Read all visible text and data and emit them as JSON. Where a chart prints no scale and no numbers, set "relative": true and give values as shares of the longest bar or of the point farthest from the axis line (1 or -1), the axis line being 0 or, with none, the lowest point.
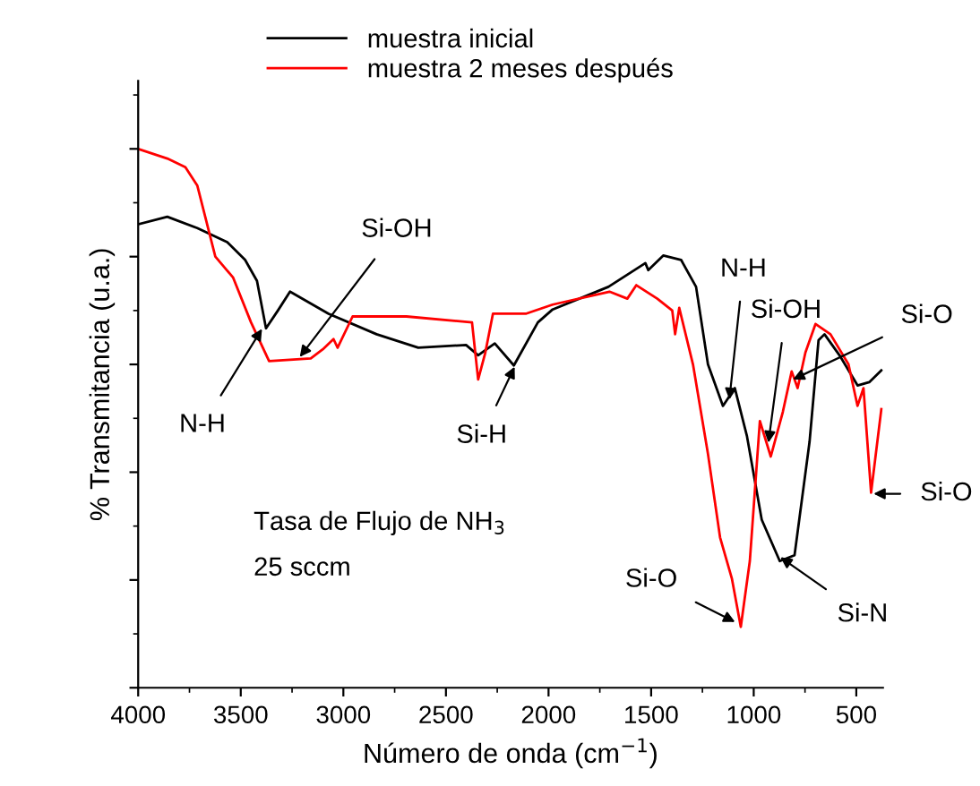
{
  "chart_data": {
    "type": "line",
    "relative": true,
    "xlabel": "Número de onda (cm$^{−1}$)",
    "ylabel": "% Transmitancia (u.a.)",
    "xlim": [
      4000,
      370
    ],
    "xticks": [
      4000,
      3500,
      3000,
      2500,
      2000,
      1500,
      1000,
      500
    ],
    "tick_labels": "x",
    "legend": "top",
    "grid": false,
    "series": [
      {
        "name": "muestra inicial",
        "color": "#000000",
        "x": [
          4000,
          3858,
          3712,
          3566,
          3479,
          3421,
          3377,
          3319,
          3260,
          3072,
          2838,
          2635,
          2402,
          2343,
          2262,
          2169,
          2052,
          1980,
          1708,
          1528,
          1514,
          1441,
          1354,
          1281,
          1223,
          1150,
          1092,
          1033,
          961,
          873,
          801,
          728,
          684,
          655,
          582,
          494,
          437,
          378
        ],
        "values": [
          0.86,
          0.874,
          0.853,
          0.827,
          0.794,
          0.755,
          0.667,
          0.7,
          0.735,
          0.694,
          0.656,
          0.631,
          0.636,
          0.617,
          0.639,
          0.598,
          0.678,
          0.702,
          0.744,
          0.788,
          0.775,
          0.802,
          0.794,
          0.744,
          0.6,
          0.523,
          0.556,
          0.467,
          0.312,
          0.235,
          0.246,
          0.456,
          0.645,
          0.656,
          0.617,
          0.561,
          0.567,
          0.589
        ]
      },
      {
        "name": "muestra 2 meses después",
        "color": "#ff0000",
        "x": [
          4000,
          3858,
          3770,
          3712,
          3668,
          3624,
          3537,
          3450,
          3362,
          3159,
          3100,
          3048,
          3028,
          2955,
          2693,
          2373,
          2343,
          2308,
          2271,
          2111,
          1980,
          1703,
          1616,
          1572,
          1470,
          1397,
          1383,
          1363,
          1296,
          1223,
          1164,
          1106,
          1063,
          1019,
          970,
          917,
          858,
          815,
          786,
          748,
          699,
          626,
          538,
          494,
          465,
          428,
          378
        ],
        "values": [
          1.0,
          0.982,
          0.966,
          0.932,
          0.866,
          0.8,
          0.761,
          0.678,
          0.606,
          0.611,
          0.628,
          0.647,
          0.631,
          0.689,
          0.689,
          0.678,
          0.572,
          0.622,
          0.694,
          0.694,
          0.711,
          0.735,
          0.722,
          0.747,
          0.722,
          0.7,
          0.656,
          0.705,
          0.6,
          0.434,
          0.279,
          0.202,
          0.113,
          0.235,
          0.495,
          0.429,
          0.512,
          0.587,
          0.556,
          0.622,
          0.675,
          0.656,
          0.6,
          0.523,
          0.556,
          0.362,
          0.517
        ]
      }
    ],
    "annotations": [
      {
        "text": "N-H",
        "x": 3390,
        "y": 0.67
      },
      {
        "text": "Si-OH",
        "x": 3220,
        "y": 0.61
      },
      {
        "text": "Si-H",
        "x": 2160,
        "y": 0.6
      },
      {
        "text": "N-H",
        "x": 1120,
        "y": 0.53
      },
      {
        "text": "Si-OH",
        "x": 930,
        "y": 0.45
      },
      {
        "text": "Si-O",
        "x": 820,
        "y": 0.57
      },
      {
        "text": "Si-O",
        "x": 1080,
        "y": 0.12
      },
      {
        "text": "Si-N",
        "x": 880,
        "y": 0.245
      },
      {
        "text": "Si-O",
        "x": 428,
        "y": 0.36
      },
      "Tasa de Flujo de NH$_{3}$",
      "25 sccm"
    ]
  }
}
